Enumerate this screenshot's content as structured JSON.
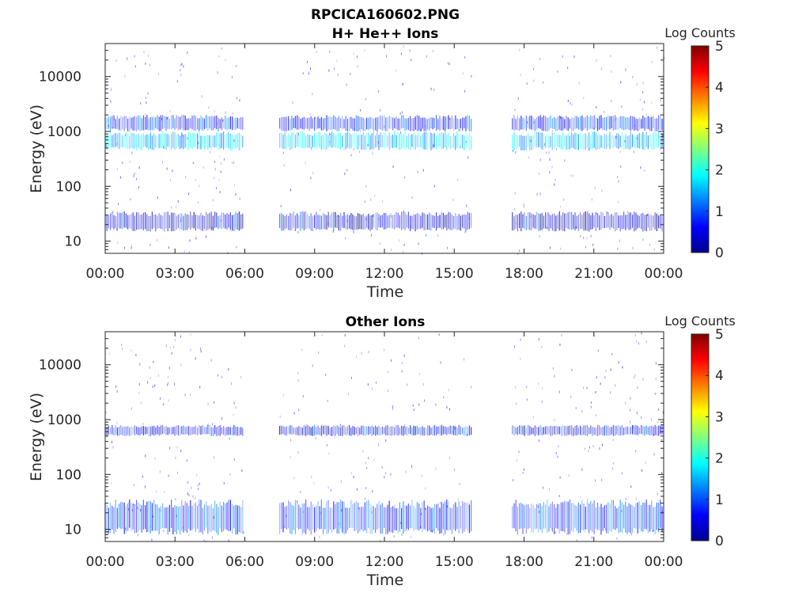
{
  "figure": {
    "title_line1": "RPCICA160602.PNG",
    "title_line2": "H+ He++ Ions"
  },
  "colors": {
    "colormap": [
      "#00008f",
      "#0000ff",
      "#0080ff",
      "#00ffff",
      "#80ff80",
      "#ffff00",
      "#ff8000",
      "#ff0000",
      "#800000"
    ],
    "axis": "#262626"
  },
  "chart_data": [
    {
      "type": "heatmap",
      "title": "H+ He++ Ions",
      "xlabel": "Time",
      "ylabel": "Energy (eV)",
      "x_tick_labels": [
        "00:00",
        "03:00",
        "06:00",
        "09:00",
        "12:00",
        "15:00",
        "18:00",
        "21:00",
        "00:00"
      ],
      "y_tick_labels": [
        "10",
        "100",
        "1000",
        "10000"
      ],
      "y_scale": "log",
      "ylim": [
        6,
        40000
      ],
      "xlim_hours": [
        0,
        24
      ],
      "colorbar": {
        "label": "Log Counts",
        "ticks": [
          "0",
          "1",
          "2",
          "3",
          "4",
          "5"
        ],
        "range": [
          0,
          5
        ]
      },
      "data_intervals_hours": [
        [
          0,
          5.95
        ],
        [
          7.5,
          15.8
        ],
        [
          17.5,
          24
        ]
      ],
      "bands": [
        {
          "energy_eV": [
            450,
            1000
          ],
          "log_counts": 1.6
        },
        {
          "energy_eV": [
            1000,
            2000
          ],
          "log_counts": 0.8
        },
        {
          "energy_eV": [
            15,
            35
          ],
          "log_counts": 0.5
        }
      ]
    },
    {
      "type": "heatmap",
      "title": "Other Ions",
      "xlabel": "Time",
      "ylabel": "Energy (eV)",
      "x_tick_labels": [
        "00:00",
        "03:00",
        "06:00",
        "09:00",
        "12:00",
        "15:00",
        "18:00",
        "21:00",
        "00:00"
      ],
      "y_tick_labels": [
        "10",
        "100",
        "1000",
        "10000"
      ],
      "y_scale": "log",
      "ylim": [
        6,
        40000
      ],
      "xlim_hours": [
        0,
        24
      ],
      "colorbar": {
        "label": "Log Counts",
        "ticks": [
          "0",
          "1",
          "2",
          "3",
          "4",
          "5"
        ],
        "range": [
          0,
          5
        ]
      },
      "data_intervals_hours": [
        [
          0,
          5.95
        ],
        [
          7.5,
          15.8
        ],
        [
          17.5,
          24
        ]
      ],
      "bands": [
        {
          "energy_eV": [
            500,
            800
          ],
          "log_counts": 0.6
        },
        {
          "energy_eV": [
            8,
            35
          ],
          "log_counts": 0.9
        }
      ]
    }
  ]
}
